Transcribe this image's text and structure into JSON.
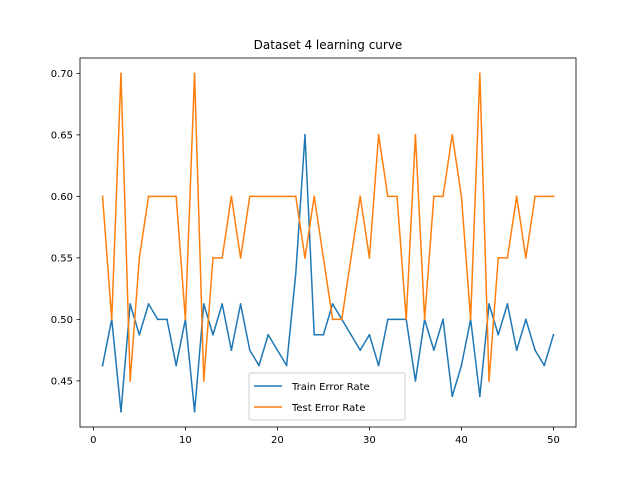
{
  "chart_data": {
    "type": "line",
    "title": "Dataset 4 learning curve",
    "xlabel": "",
    "ylabel": "",
    "xlim": [
      -1.45,
      52.45
    ],
    "ylim": [
      0.4125,
      0.7125
    ],
    "xticks": [
      0,
      10,
      20,
      30,
      40,
      50
    ],
    "yticks": [
      0.45,
      0.5,
      0.55,
      0.6,
      0.65,
      0.7
    ],
    "ytick_labels": [
      "0.45",
      "0.50",
      "0.55",
      "0.60",
      "0.65",
      "0.70"
    ],
    "grid": false,
    "legend_position": "lower center",
    "x": [
      1,
      2,
      3,
      4,
      5,
      6,
      7,
      8,
      9,
      10,
      11,
      12,
      13,
      14,
      15,
      16,
      17,
      18,
      19,
      20,
      21,
      22,
      23,
      24,
      25,
      26,
      27,
      28,
      29,
      30,
      31,
      32,
      33,
      34,
      35,
      36,
      37,
      38,
      39,
      40,
      41,
      42,
      43,
      44,
      45,
      46,
      47,
      48,
      49,
      50
    ],
    "series": [
      {
        "name": "Train Error Rate",
        "color": "#1f77b4",
        "values": [
          0.4625,
          0.5,
          0.425,
          0.5125,
          0.4875,
          0.5125,
          0.5,
          0.5,
          0.4625,
          0.5,
          0.425,
          0.5125,
          0.4875,
          0.5125,
          0.475,
          0.5125,
          0.475,
          0.4625,
          0.4875,
          0.475,
          0.4625,
          0.5375,
          0.65,
          0.4875,
          0.4875,
          0.5125,
          0.5,
          0.4875,
          0.475,
          0.4875,
          0.4625,
          0.5,
          0.5,
          0.5,
          0.45,
          0.5,
          0.475,
          0.5,
          0.4375,
          0.4625,
          0.5,
          0.4375,
          0.5125,
          0.4875,
          0.5125,
          0.475,
          0.5,
          0.475,
          0.4625,
          0.4875
        ]
      },
      {
        "name": "Test Error Rate",
        "color": "#ff7f0e",
        "values": [
          0.6,
          0.5,
          0.7,
          0.45,
          0.55,
          0.6,
          0.6,
          0.6,
          0.6,
          0.5,
          0.7,
          0.45,
          0.55,
          0.55,
          0.6,
          0.55,
          0.6,
          0.6,
          0.6,
          0.6,
          0.6,
          0.6,
          0.55,
          0.6,
          0.55,
          0.5,
          0.5,
          0.55,
          0.6,
          0.55,
          0.65,
          0.6,
          0.6,
          0.5,
          0.65,
          0.5,
          0.6,
          0.6,
          0.65,
          0.6,
          0.5,
          0.7,
          0.45,
          0.55,
          0.55,
          0.6,
          0.55,
          0.6,
          0.6,
          0.6
        ]
      }
    ]
  }
}
